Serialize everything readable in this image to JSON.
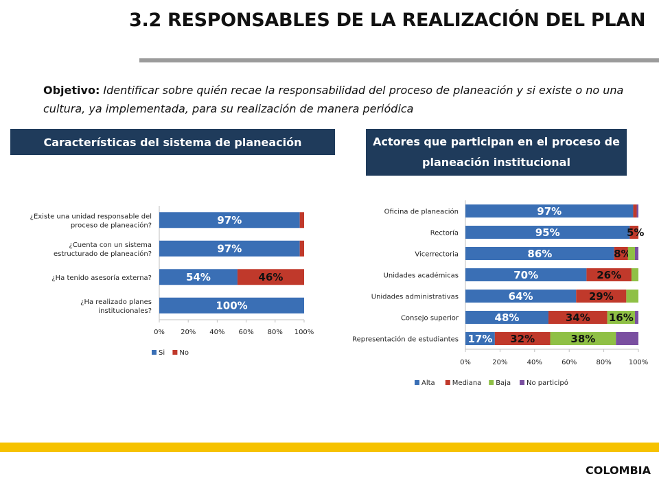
{
  "page": {
    "title": "3.2 RESPONSABLES DE LA REALIZACIÓN DEL PLAN",
    "objective_lead": "Objetivo:",
    "objective_text": " Identificar sobre quién recae la responsabilidad del proceso de planeación y si existe o no una cultura, ya implementada, para su realización de manera periódica",
    "footer": "COLOMBIA"
  },
  "sections": {
    "left_header": "Características del sistema de planeación",
    "right_header": "Actores que participan en el proceso de planeación institucional"
  },
  "chart_data": [
    {
      "type": "bar",
      "orientation": "horizontal",
      "stacked": true,
      "categories": [
        "¿Existe una unidad responsable del proceso de planeación?",
        "¿Cuenta con un sistema estructurado de planeación?",
        "¿Ha tenido asesoría externa?",
        "¿Ha realizado planes institucionales?"
      ],
      "series": [
        {
          "name": "Si",
          "color": "#3a6fb5",
          "values": [
            97,
            97,
            54,
            100
          ],
          "labels": [
            "97%",
            "97%",
            "54%",
            "100%"
          ]
        },
        {
          "name": "No",
          "color": "#c0392b",
          "values": [
            3,
            3,
            46,
            0
          ],
          "labels": [
            "",
            "",
            "46%",
            ""
          ]
        }
      ],
      "xlim": [
        0,
        100
      ],
      "xticks": [
        "0%",
        "20%",
        "40%",
        "60%",
        "80%",
        "100%"
      ],
      "legend": "bottom"
    },
    {
      "type": "bar",
      "orientation": "horizontal",
      "stacked": true,
      "categories": [
        "Oficina de planeación",
        "Rectoría",
        "Vicerrectoria",
        "Unidades académicas",
        "Unidades administrativas",
        "Consejo superior",
        "Representación de estudiantes"
      ],
      "series": [
        {
          "name": "Alta",
          "color": "#3a6fb5",
          "values": [
            97,
            95,
            86,
            70,
            64,
            48,
            17
          ],
          "labels": [
            "97%",
            "95%",
            "86%",
            "70%",
            "64%",
            "48%",
            "17%"
          ]
        },
        {
          "name": "Mediana",
          "color": "#c0392b",
          "values": [
            2,
            5,
            8,
            26,
            29,
            34,
            32
          ],
          "labels": [
            "",
            "5%",
            "8%",
            "26%",
            "29%",
            "34%",
            "32%"
          ]
        },
        {
          "name": "Baja",
          "color": "#8fc045",
          "values": [
            0,
            0,
            4,
            4,
            7,
            16,
            38
          ],
          "labels": [
            "",
            "",
            "",
            "",
            "",
            "16%",
            "38%"
          ]
        },
        {
          "name": "No participó",
          "color": "#7a4fa0",
          "values": [
            1,
            0,
            2,
            0,
            0,
            2,
            13
          ],
          "labels": [
            "",
            "",
            "",
            "",
            "",
            "",
            ""
          ]
        }
      ],
      "xlim": [
        0,
        100
      ],
      "xticks": [
        "0%",
        "20%",
        "40%",
        "60%",
        "80%",
        "100%"
      ],
      "legend": "bottom"
    }
  ]
}
